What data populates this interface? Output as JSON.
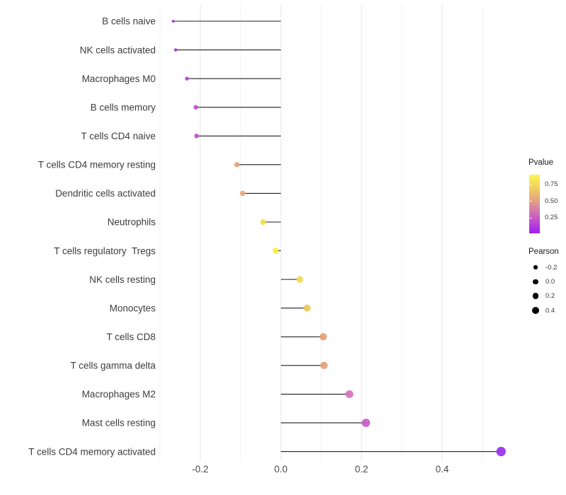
{
  "page": {
    "background": "#FFFFFF"
  },
  "chart_data": {
    "type": "scatter",
    "variant": "lollipop",
    "orientation": "horizontal",
    "title": "",
    "xlabel": "",
    "ylabel": "",
    "x_ticks": [
      -0.2,
      0.0,
      0.2,
      0.4
    ],
    "x_tick_labels": [
      "-0.2",
      "0.0",
      "0.2",
      "0.4"
    ],
    "xlim": [
      -0.3,
      0.56
    ],
    "grid": {
      "show_vertical": true,
      "show_horizontal": false,
      "major_x": [
        -0.2,
        0.0,
        0.2,
        0.4
      ],
      "minor_x": [
        -0.3,
        -0.1,
        0.1,
        0.3,
        0.5
      ],
      "major_color": "#E6E6E6",
      "minor_color": "#F2F2F2"
    },
    "stem_color": "#1F1F1F",
    "axis_text_color": "#4A4A4A",
    "categories": [
      "B cells naive",
      "NK cells activated",
      "Macrophages M0",
      "B cells memory",
      "T cells CD4 naive",
      "T cells CD4 memory resting",
      "Dendritic cells activated",
      "Neutrophils",
      "T cells regulatory  Tregs",
      "NK cells resting",
      "Monocytes",
      "T cells CD8",
      "T cells gamma delta",
      "Macrophages M2",
      "Mast cells resting",
      "T cells CD4 memory activated"
    ],
    "points": [
      {
        "label": "B cells naive",
        "pearson": -0.267,
        "pvalue_approx": 0.15,
        "color": "#A335D8",
        "r": 2.0
      },
      {
        "label": "NK cells activated",
        "pearson": -0.261,
        "pvalue_approx": 0.17,
        "color": "#A93AD4",
        "r": 2.3
      },
      {
        "label": "Macrophages M0",
        "pearson": -0.233,
        "pvalue_approx": 0.22,
        "color": "#B347CB",
        "r": 2.8
      },
      {
        "label": "B cells memory",
        "pearson": -0.211,
        "pvalue_approx": 0.27,
        "color": "#BD52C6",
        "r": 3.3
      },
      {
        "label": "T cells CD4 naive",
        "pearson": -0.209,
        "pvalue_approx": 0.27,
        "color": "#BD54C5",
        "r": 3.3
      },
      {
        "label": "T cells CD4 memory resting",
        "pearson": -0.109,
        "pvalue_approx": 0.55,
        "color": "#E6A47C",
        "r": 3.7
      },
      {
        "label": "Dendritic cells activated",
        "pearson": -0.095,
        "pvalue_approx": 0.58,
        "color": "#E9AB7E",
        "r": 3.8
      },
      {
        "label": "Neutrophils",
        "pearson": -0.044,
        "pvalue_approx": 0.8,
        "color": "#F3E048",
        "r": 4.0
      },
      {
        "label": "T cells regulatory  Tregs",
        "pearson": -0.013,
        "pvalue_approx": 0.9,
        "color": "#F7EE3C",
        "r": 4.2
      },
      {
        "label": "NK cells resting",
        "pearson": 0.047,
        "pvalue_approx": 0.78,
        "color": "#F3D94F",
        "r": 4.7
      },
      {
        "label": "Monocytes",
        "pearson": 0.065,
        "pvalue_approx": 0.7,
        "color": "#EFC95C",
        "r": 5.0
      },
      {
        "label": "T cells CD8",
        "pearson": 0.105,
        "pvalue_approx": 0.55,
        "color": "#E89F75",
        "r": 5.2
      },
      {
        "label": "T cells gamma delta",
        "pearson": 0.107,
        "pvalue_approx": 0.55,
        "color": "#E89F75",
        "r": 5.2
      },
      {
        "label": "Macrophages M2",
        "pearson": 0.17,
        "pvalue_approx": 0.35,
        "color": "#D76FBB",
        "r": 5.5
      },
      {
        "label": "Mast cells resting",
        "pearson": 0.211,
        "pvalue_approx": 0.25,
        "color": "#C95ACB",
        "r": 5.9
      },
      {
        "label": "T cells CD4 memory activated",
        "pearson": 0.546,
        "pvalue_approx": 0.02,
        "color": "#9830F0",
        "r": 6.7
      }
    ],
    "legend": {
      "position": "right",
      "pvalue": {
        "title": "Pvalue",
        "tick_labels": [
          "0.75",
          "0.50",
          "0.25"
        ],
        "tick_values": [
          0.75,
          0.5,
          0.25
        ],
        "range_est": [
          0.01,
          0.9
        ],
        "gradient_stops": [
          {
            "color": "#FBF64E",
            "pos": 0
          },
          {
            "color": "#F2D55E",
            "pos": 20
          },
          {
            "color": "#E5A77E",
            "pos": 42
          },
          {
            "color": "#D478AF",
            "pos": 62
          },
          {
            "color": "#BC45D6",
            "pos": 82
          },
          {
            "color": "#9C1FF0",
            "pos": 100
          }
        ]
      },
      "pearson": {
        "title": "Pearson",
        "dot_color": "#000000",
        "items": [
          {
            "label": "-0.2",
            "r": 2.6
          },
          {
            "label": "0.0",
            "r": 3.6
          },
          {
            "label": "0.2",
            "r": 4.4
          },
          {
            "label": "0.4",
            "r": 5.0
          }
        ]
      }
    }
  }
}
